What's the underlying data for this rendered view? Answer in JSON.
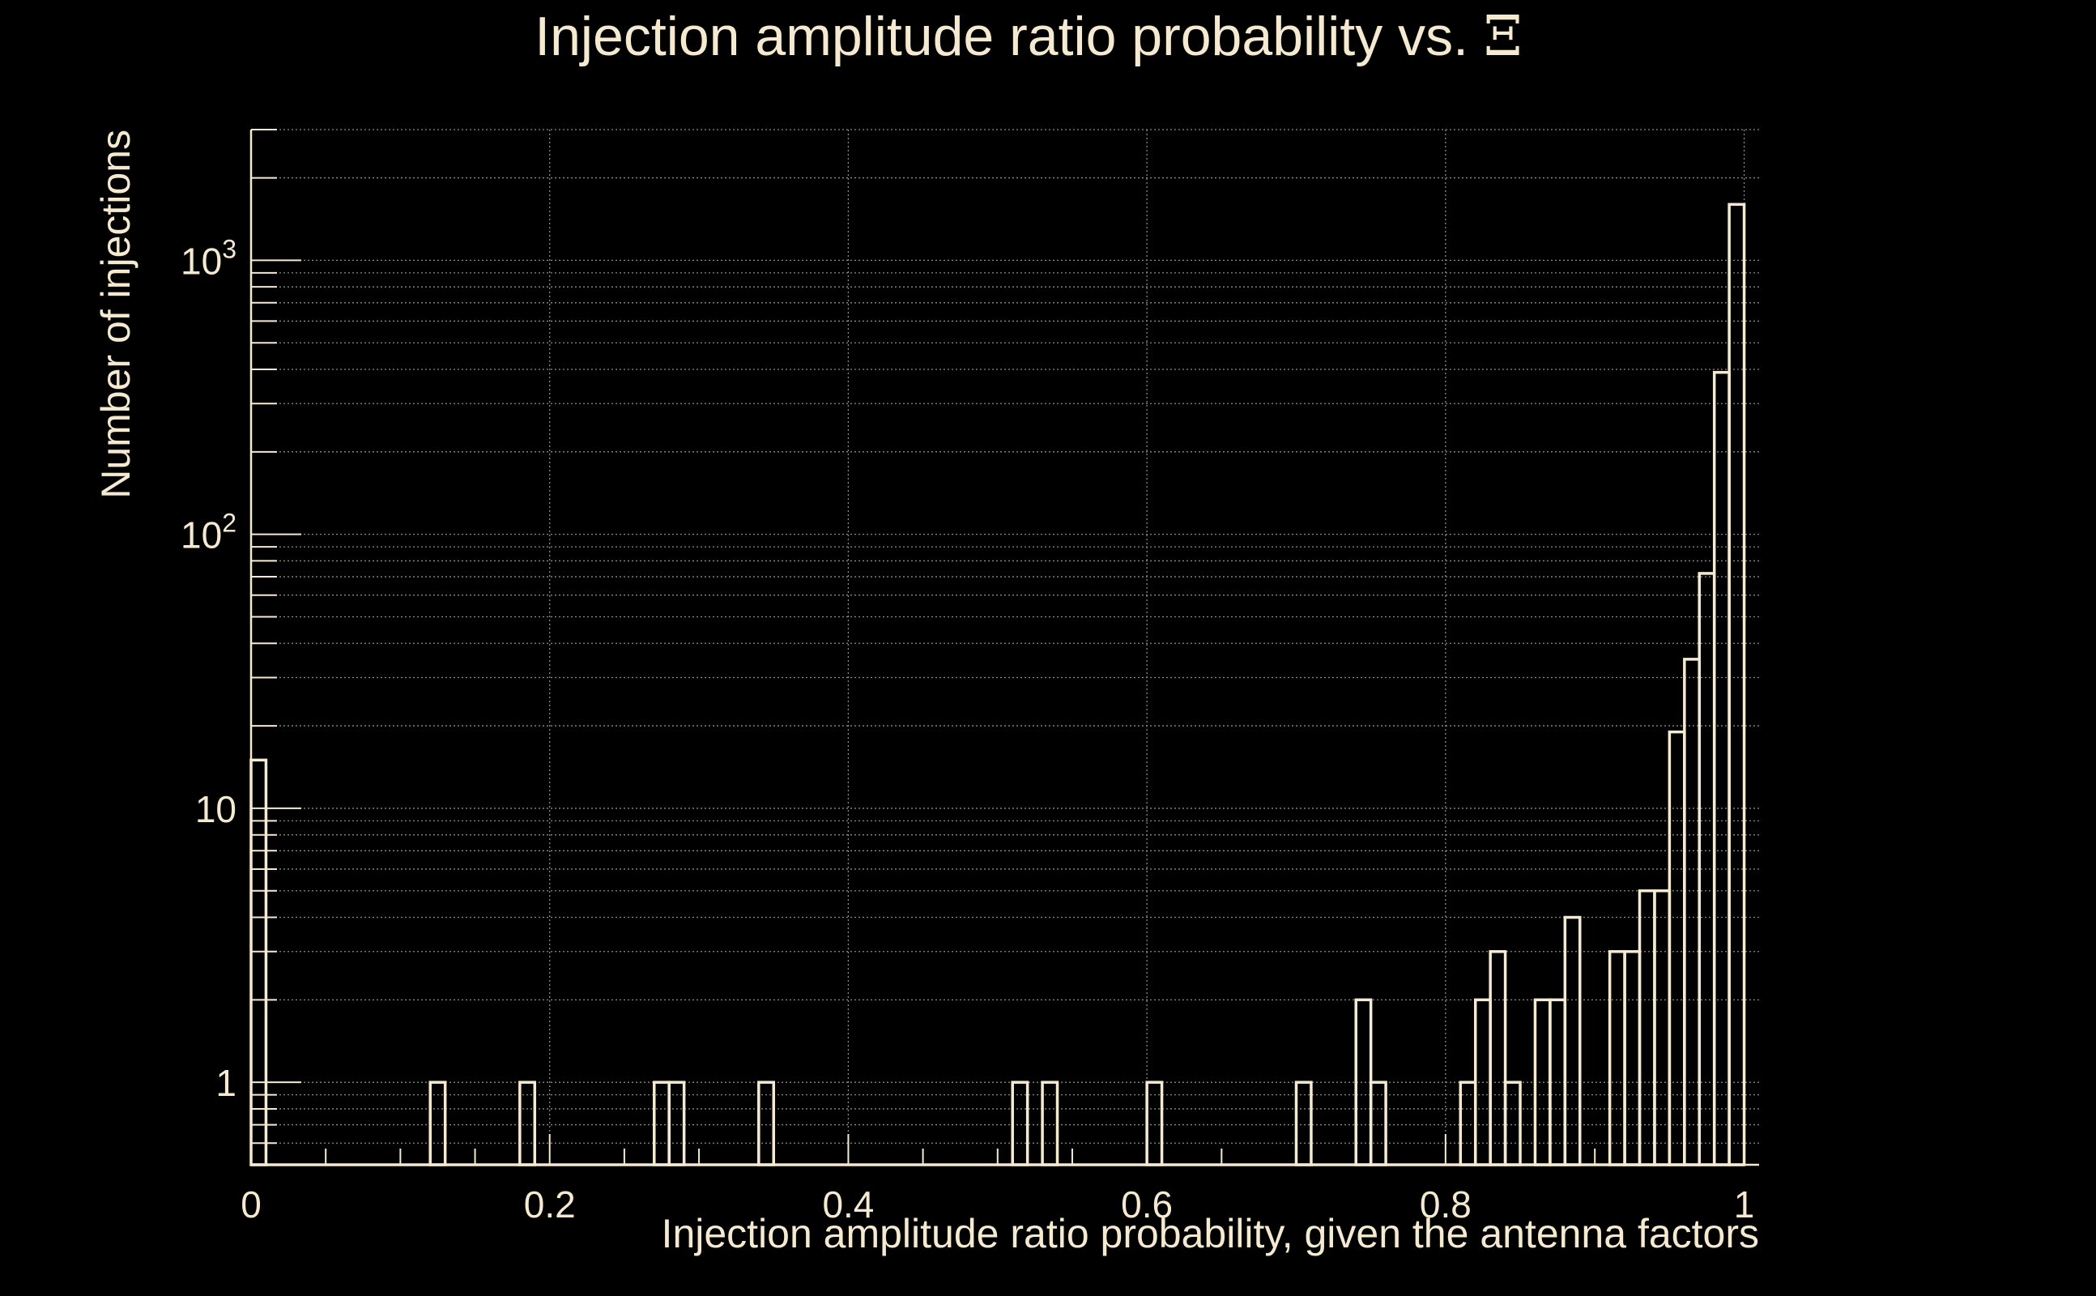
{
  "chart_data": {
    "type": "histogram",
    "title": "Injection amplitude ratio probability vs.",
    "title_symbol": "Ξ",
    "xlabel": "Injection amplitude ratio probability, given the antenna factors",
    "ylabel": "Number of injections",
    "x_scale": "linear",
    "y_scale": "log",
    "xlim": [
      0,
      1.01
    ],
    "ylim": [
      0.5,
      3000
    ],
    "x_ticks": [
      0,
      0.2,
      0.4,
      0.6,
      0.8,
      1
    ],
    "x_tick_labels": [
      "0",
      "0.2",
      "0.4",
      "0.6",
      "0.8",
      "1"
    ],
    "y_ticks": [
      1,
      10,
      100,
      1000
    ],
    "y_tick_labels": [
      {
        "base": "1",
        "exp": ""
      },
      {
        "base": "10",
        "exp": ""
      },
      {
        "base": "10",
        "exp": "2"
      },
      {
        "base": "10",
        "exp": "3"
      }
    ],
    "grid": true,
    "bin_width": 0.01,
    "bins": [
      {
        "x": 0.0,
        "count": 15
      },
      {
        "x": 0.12,
        "count": 1
      },
      {
        "x": 0.18,
        "count": 1
      },
      {
        "x": 0.27,
        "count": 1
      },
      {
        "x": 0.28,
        "count": 1
      },
      {
        "x": 0.34,
        "count": 1
      },
      {
        "x": 0.51,
        "count": 1
      },
      {
        "x": 0.53,
        "count": 1
      },
      {
        "x": 0.6,
        "count": 1
      },
      {
        "x": 0.7,
        "count": 1
      },
      {
        "x": 0.74,
        "count": 2
      },
      {
        "x": 0.75,
        "count": 1
      },
      {
        "x": 0.81,
        "count": 1
      },
      {
        "x": 0.82,
        "count": 2
      },
      {
        "x": 0.83,
        "count": 3
      },
      {
        "x": 0.84,
        "count": 1
      },
      {
        "x": 0.86,
        "count": 2
      },
      {
        "x": 0.87,
        "count": 2
      },
      {
        "x": 0.88,
        "count": 4
      },
      {
        "x": 0.91,
        "count": 3
      },
      {
        "x": 0.92,
        "count": 3
      },
      {
        "x": 0.93,
        "count": 5
      },
      {
        "x": 0.94,
        "count": 5
      },
      {
        "x": 0.95,
        "count": 19
      },
      {
        "x": 0.96,
        "count": 35
      },
      {
        "x": 0.97,
        "count": 72
      },
      {
        "x": 0.98,
        "count": 390
      },
      {
        "x": 0.99,
        "count": 1600
      }
    ],
    "colors": {
      "background": "#000000",
      "foreground": "#f5ead0",
      "grid": "#8c8a86"
    }
  }
}
